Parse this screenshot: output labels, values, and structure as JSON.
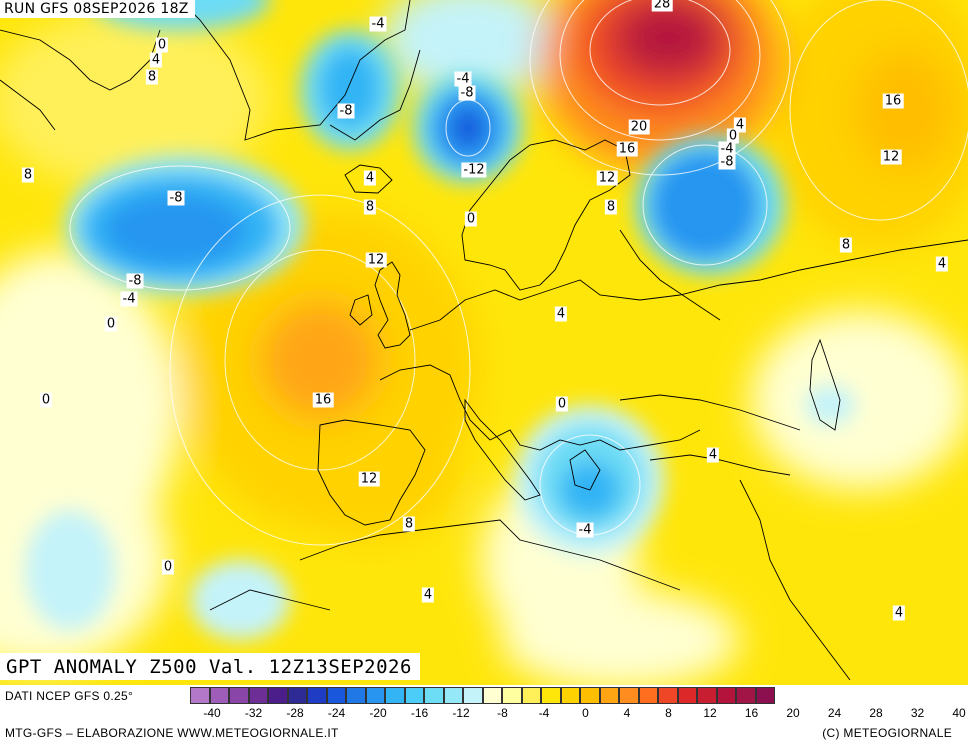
{
  "header": {
    "run_title": "RUN GFS 08SEP2026 18Z"
  },
  "main_title": "GPT ANOMALY Z500 Val. 12Z13SEP2026",
  "footer": {
    "data_source": "DATI NCEP GFS 0.25°",
    "credit_left": "MTG-GFS – ELABORAZIONE WWW.METEOGIORNALE.IT",
    "credit_right": "(C) METEOGIORNALE"
  },
  "legend": {
    "colors": [
      "#b478c8",
      "#9d5db8",
      "#8a45a8",
      "#6d2f96",
      "#4b1e8c",
      "#2e2a96",
      "#1f3cc4",
      "#1957dc",
      "#1f78e6",
      "#2896f0",
      "#33b4f5",
      "#4ccdf7",
      "#6ddcf5",
      "#95e8f8",
      "#c4f3fa",
      "#ffffd2",
      "#ffffa0",
      "#fff05a",
      "#ffe60a",
      "#ffd200",
      "#ffbe00",
      "#ffa514",
      "#ff8c1e",
      "#ff6e1e",
      "#f04628",
      "#dc2828",
      "#c81e32",
      "#b4143c",
      "#a01446",
      "#8c0f50"
    ],
    "ticks": [
      "-40",
      "-32",
      "-28",
      "-24",
      "-20",
      "-16",
      "-12",
      "-8",
      "-4",
      "0",
      "4",
      "8",
      "12",
      "16",
      "20",
      "24",
      "28",
      "32",
      "40"
    ]
  },
  "contour_labels": [
    "-4",
    "0",
    "4",
    "8",
    "-8",
    "-4",
    "-8",
    "-12",
    "28",
    "16",
    "20",
    "16",
    "12",
    "8",
    "4",
    "0",
    "-4",
    "-8",
    "12",
    "8",
    "-8",
    "-8",
    "-4",
    "0",
    "4",
    "8",
    "0",
    "12",
    "16",
    "12",
    "8",
    "0",
    "-4",
    "4",
    "4",
    "0",
    "8",
    "4",
    "0",
    "4",
    "4"
  ],
  "colors": {
    "pos_orange": "#ffaa14",
    "pos_red": "#c81e32",
    "neg_blue": "#1f78e6",
    "neutral": "#ffffd2"
  }
}
